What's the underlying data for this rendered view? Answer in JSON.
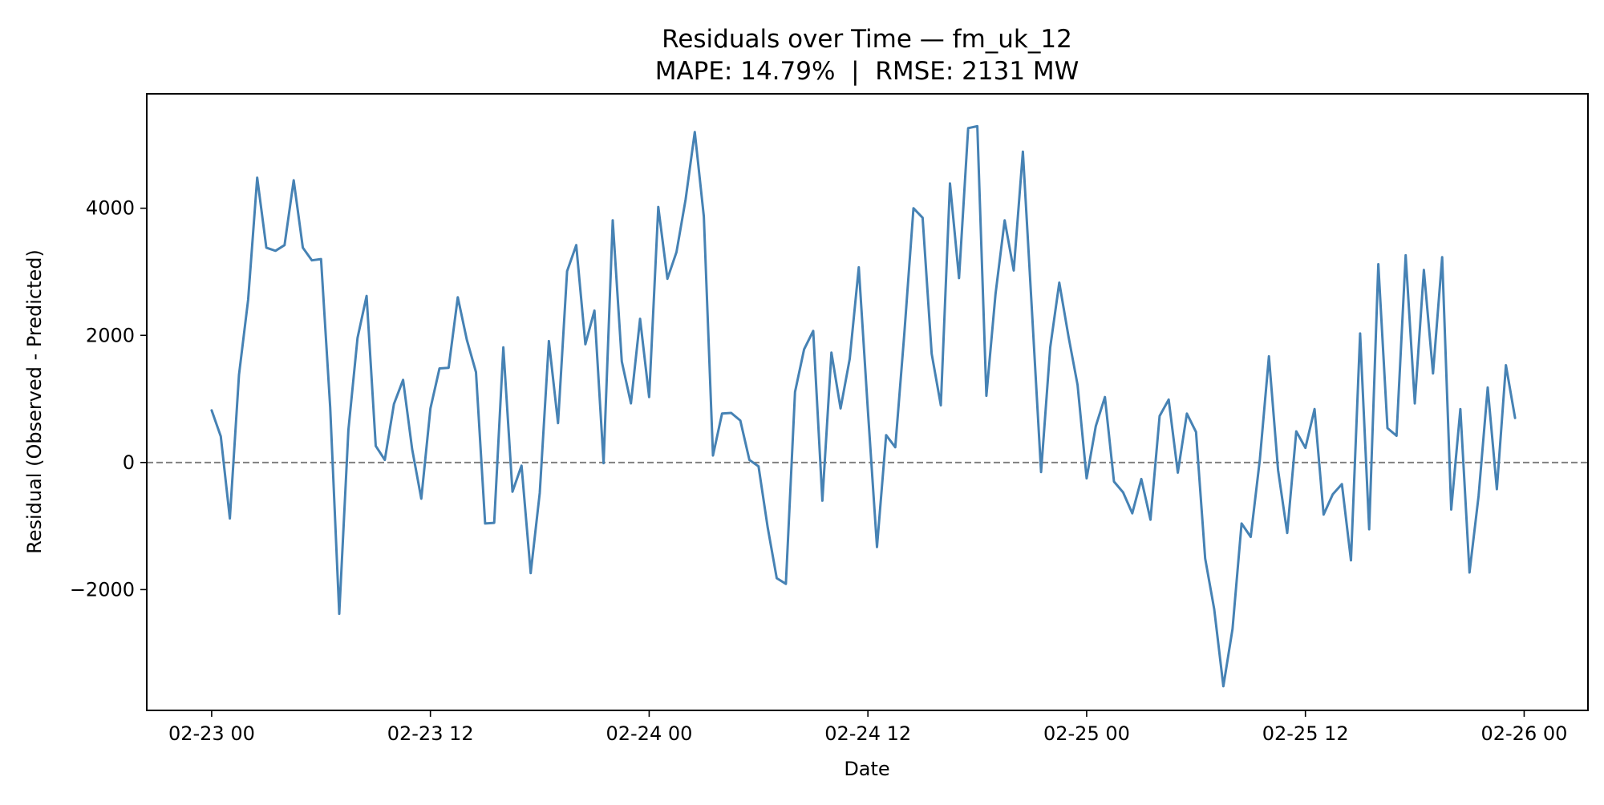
{
  "chart_data": {
    "type": "line",
    "title": "Residuals over Time — fm_uk_12",
    "subtitle": "MAPE: 14.79%  |  RMSE: 2131 MW",
    "xlabel": "Date",
    "ylabel": "Residual (Observed - Predicted)",
    "x_tick_labels": [
      "02-23 00",
      "02-23 12",
      "02-24 00",
      "02-24 12",
      "02-25 00",
      "02-25 12",
      "02-26 00"
    ],
    "y_tick_labels": [
      "−2000",
      "0",
      "2000",
      "4000"
    ],
    "y_ticks": [
      -2000,
      0,
      2000,
      4000
    ],
    "x_range_hours": [
      -3.56,
      75.5
    ],
    "ylim": [
      -3900,
      5800
    ],
    "x_unit": "hours since 02-23 00",
    "reference_line": {
      "y": 0,
      "style": "dashed",
      "color": "#808080"
    },
    "grid": false,
    "legend": "none",
    "series": [
      {
        "color": "#4682b4",
        "x": [
          0.0,
          0.5,
          1.0,
          1.5,
          2.0,
          2.5,
          3.0,
          3.5,
          4.0,
          4.5,
          5.0,
          5.5,
          6.0,
          6.5,
          7.0,
          7.5,
          8.0,
          8.5,
          9.0,
          9.5,
          10.0,
          10.5,
          11.0,
          11.5,
          12.0,
          12.5,
          13.0,
          13.5,
          14.0,
          14.5,
          15.0,
          15.5,
          16.0,
          16.5,
          17.0,
          17.5,
          18.0,
          18.5,
          19.0,
          19.5,
          20.0,
          20.5,
          21.0,
          21.5,
          22.0,
          22.5,
          23.0,
          23.5,
          24.0,
          24.5,
          25.0,
          25.5,
          26.0,
          26.5,
          27.0,
          27.5,
          28.0,
          28.5,
          29.0,
          29.5,
          30.0,
          30.5,
          31.0,
          31.5,
          32.0,
          32.5,
          33.0,
          33.5,
          34.0,
          34.5,
          35.0,
          35.5,
          36.0,
          36.5,
          37.0,
          37.5,
          38.0,
          38.5,
          39.0,
          39.5,
          40.0,
          40.5,
          41.0,
          41.5,
          42.0,
          42.5,
          43.0,
          43.5,
          44.0,
          44.5,
          45.0,
          45.5,
          46.0,
          46.5,
          47.0,
          47.5,
          48.0,
          48.5,
          49.0,
          49.5,
          50.0,
          50.5,
          51.0,
          51.5,
          52.0,
          52.5,
          53.0,
          53.5,
          54.0,
          54.5,
          55.0,
          55.5,
          56.0,
          56.5,
          57.0,
          57.5,
          58.0,
          58.5,
          59.0,
          59.5,
          60.0,
          60.5,
          61.0,
          61.5,
          62.0,
          62.5,
          63.0,
          63.5,
          64.0,
          64.5,
          65.0,
          65.5,
          66.0,
          66.5,
          67.0,
          67.5,
          68.0,
          68.5,
          69.0,
          69.5,
          70.0,
          70.5,
          71.0,
          71.5
        ],
        "y": [
          820,
          410,
          -880,
          1380,
          2560,
          4480,
          3380,
          3330,
          3420,
          4440,
          3380,
          3180,
          3200,
          870,
          -2380,
          510,
          1960,
          2620,
          260,
          40,
          920,
          1300,
          210,
          -570,
          850,
          1480,
          1490,
          2600,
          1930,
          1420,
          -960,
          -950,
          1810,
          -460,
          -50,
          -1740,
          -480,
          1910,
          620,
          3010,
          3420,
          1860,
          2390,
          -10,
          3810,
          1590,
          930,
          2260,
          1030,
          4020,
          2890,
          3310,
          4140,
          5200,
          3870,
          110,
          770,
          780,
          660,
          40,
          -60,
          -1020,
          -1820,
          -1910,
          1110,
          1780,
          2070,
          -600,
          1730,
          850,
          1630,
          3070,
          810,
          -1330,
          430,
          240,
          2030,
          4000,
          3850,
          1710,
          900,
          4390,
          2900,
          5260,
          5290,
          1050,
          2650,
          3810,
          3020,
          4890,
          2390,
          -150,
          1810,
          2830,
          1990,
          1220,
          -250,
          570,
          1030,
          -300,
          -470,
          -800,
          -260,
          -900,
          730,
          990,
          -160,
          770,
          480,
          -1510,
          -2310,
          -3520,
          -2620,
          -960,
          -1170,
          50,
          1670,
          -120,
          -1110,
          490,
          230,
          840,
          -820,
          -500,
          -340,
          -1540,
          2030,
          -1050,
          3120,
          540,
          420,
          3260,
          930,
          3030,
          1400,
          3230,
          -740,
          840,
          -1730,
          -530,
          1180,
          -420,
          1530,
          700
        ]
      }
    ]
  }
}
